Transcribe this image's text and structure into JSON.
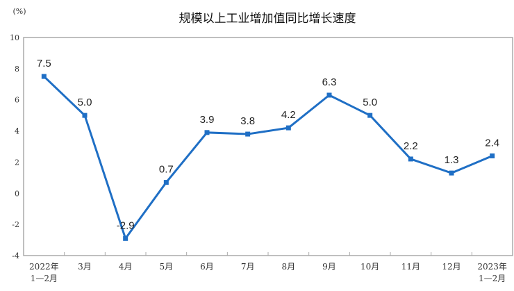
{
  "chart_data": {
    "type": "line",
    "title": "规模以上工业增加值同比增长速度",
    "ylabel": "(%)",
    "xlabel": "",
    "ylim": [
      -4,
      10
    ],
    "yticks": [
      "10",
      "8",
      "6",
      "4",
      "2",
      "0",
      "-2",
      "-4"
    ],
    "categories": [
      [
        "2022年",
        "1—2月"
      ],
      [
        "3月"
      ],
      [
        "4月"
      ],
      [
        "5月"
      ],
      [
        "6月"
      ],
      [
        "7月"
      ],
      [
        "8月"
      ],
      [
        "9月"
      ],
      [
        "10月"
      ],
      [
        "11月"
      ],
      [
        "12月"
      ],
      [
        "2023年",
        "1—2月"
      ]
    ],
    "values": [
      7.5,
      5.0,
      -2.9,
      0.7,
      3.9,
      3.8,
      4.2,
      6.3,
      5.0,
      2.2,
      1.3,
      2.4
    ],
    "data_labels": [
      "7.5",
      "5.0",
      "-2.9",
      "0.7",
      "3.9",
      "3.8",
      "4.2",
      "6.3",
      "5.0",
      "2.2",
      "1.3",
      "2.4"
    ],
    "grid": false,
    "legend": "none",
    "line_color": "#1f6fc5"
  }
}
